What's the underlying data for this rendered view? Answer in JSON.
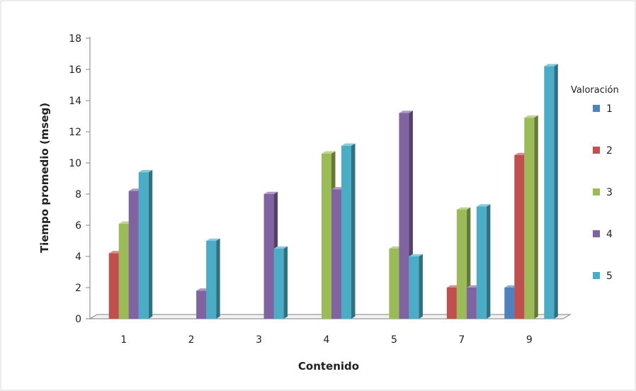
{
  "chart_data": {
    "type": "bar",
    "title": "",
    "xlabel": "Contenido",
    "ylabel": "Tiempo promedio  (mseg)",
    "ylim": [
      0,
      18
    ],
    "yticks": [
      "0",
      "2",
      "4",
      "6",
      "8",
      "10",
      "12",
      "14",
      "16",
      "18"
    ],
    "categories": [
      "1",
      "2",
      "3",
      "4",
      "5",
      "7",
      "9"
    ],
    "legend": {
      "title": "Valoración",
      "position": "right"
    },
    "series": [
      {
        "name": "1",
        "color": "#4F81BD",
        "values": [
          0,
          0,
          0,
          0,
          0,
          0,
          2.0
        ]
      },
      {
        "name": "2",
        "color": "#C0504D",
        "values": [
          4.2,
          0,
          0,
          0,
          0,
          2.0,
          10.5
        ]
      },
      {
        "name": "3",
        "color": "#9BBB59",
        "values": [
          6.1,
          0,
          0,
          10.6,
          4.5,
          7.0,
          12.9
        ]
      },
      {
        "name": "4",
        "color": "#8064A2",
        "values": [
          8.2,
          1.8,
          8.0,
          8.3,
          13.2,
          2.0,
          0
        ]
      },
      {
        "name": "5",
        "color": "#4BACC6",
        "values": [
          9.4,
          5.0,
          4.5,
          11.1,
          4.0,
          7.2,
          16.2
        ]
      }
    ],
    "grid": false
  }
}
